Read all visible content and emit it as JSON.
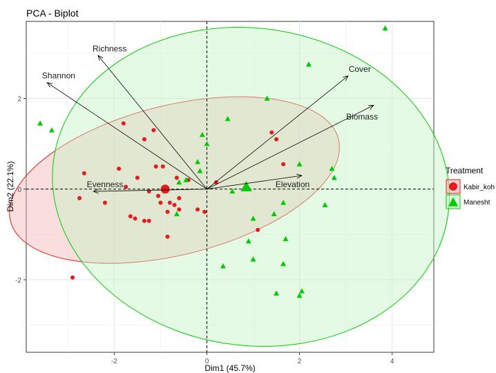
{
  "chart_data": {
    "type": "scatter",
    "title": "PCA - Biplot",
    "xlabel": "Dim1 (45.7%)",
    "ylabel": "Dim2 (22.1%)",
    "xlim": [
      -3.9,
      4.9
    ],
    "ylim": [
      -3.6,
      3.7
    ],
    "xticks": [
      -2,
      0,
      2,
      4
    ],
    "yticks": [
      -2,
      0,
      2
    ],
    "grid": true,
    "legend": {
      "title": "Treatment",
      "position": "right"
    },
    "series": [
      {
        "name": "Kabir_koh",
        "color": "#e41a1c",
        "fill": "#f4b4b4",
        "marker": "circle",
        "points": [
          [
            -1.8,
            1.45
          ],
          [
            -1.35,
            1.1
          ],
          [
            -1.15,
            1.3
          ],
          [
            -1.1,
            0.5
          ],
          [
            -0.95,
            0.5
          ],
          [
            -2.65,
            0.35
          ],
          [
            -1.9,
            0.45
          ],
          [
            -1.5,
            0.25
          ],
          [
            -1.75,
            0.05
          ],
          [
            -1.25,
            -0.05
          ],
          [
            -2.75,
            -0.2
          ],
          [
            -2.2,
            -0.3
          ],
          [
            -1.65,
            -0.6
          ],
          [
            -1.55,
            -0.65
          ],
          [
            -1.35,
            -0.7
          ],
          [
            -1.25,
            -0.7
          ],
          [
            -1.05,
            -0.15
          ],
          [
            -1.0,
            -0.3
          ],
          [
            -0.8,
            -0.3
          ],
          [
            -0.85,
            -0.5
          ],
          [
            -0.6,
            -0.2
          ],
          [
            -0.4,
            0.2
          ],
          [
            -0.65,
            0.25
          ],
          [
            -0.7,
            -0.35
          ],
          [
            -0.6,
            -0.45
          ],
          [
            -0.2,
            -0.45
          ],
          [
            -0.05,
            -0.5
          ],
          [
            -0.85,
            -1.05
          ],
          [
            0.2,
            0.15
          ],
          [
            1.4,
            1.25
          ],
          [
            1.5,
            1.1
          ],
          [
            1.65,
            0.55
          ],
          [
            1.1,
            -0.9
          ],
          [
            -2.9,
            -1.95
          ]
        ],
        "centroid": [
          -0.9,
          0.0
        ],
        "ellipse": {
          "cx": -0.7,
          "cy": 0.2,
          "rx": 3.65,
          "ry": 1.65,
          "angle_deg": 14
        }
      },
      {
        "name": "Manesht",
        "color": "#00cc00",
        "fill": "#c6f5c6",
        "marker": "triangle",
        "points": [
          [
            3.85,
            3.55
          ],
          [
            2.2,
            2.75
          ],
          [
            1.3,
            2.0
          ],
          [
            -3.6,
            1.45
          ],
          [
            -3.35,
            1.3
          ],
          [
            0.45,
            1.55
          ],
          [
            -0.1,
            1.2
          ],
          [
            0.0,
            1.0
          ],
          [
            -0.2,
            0.6
          ],
          [
            -0.15,
            0.4
          ],
          [
            -0.45,
            0.2
          ],
          [
            -0.6,
            0.15
          ],
          [
            0.55,
            -0.05
          ],
          [
            0.85,
            0.05
          ],
          [
            2.0,
            0.55
          ],
          [
            2.7,
            0.45
          ],
          [
            2.75,
            0.25
          ],
          [
            1.65,
            -0.3
          ],
          [
            2.55,
            -0.35
          ],
          [
            1.0,
            -0.65
          ],
          [
            1.45,
            -0.55
          ],
          [
            -0.65,
            -0.55
          ],
          [
            0.9,
            -1.15
          ],
          [
            1.7,
            -1.1
          ],
          [
            0.35,
            -1.7
          ],
          [
            1.0,
            -1.55
          ],
          [
            1.65,
            -1.65
          ],
          [
            1.5,
            -2.3
          ],
          [
            2.05,
            -2.25
          ],
          [
            2.0,
            -2.35
          ]
        ],
        "centroid": [
          0.85,
          0.05
        ],
        "ellipse": {
          "cx": 0.95,
          "cy": 0.05,
          "rx": 4.3,
          "ry": 3.5,
          "angle_deg": -8
        }
      }
    ],
    "vectors": [
      {
        "label": "Richness",
        "x": -2.35,
        "y": 2.95,
        "label_x": -2.1,
        "label_y": 3.1
      },
      {
        "label": "Shannon",
        "x": -3.45,
        "y": 2.35,
        "label_x": -3.2,
        "label_y": 2.5
      },
      {
        "label": "Cover",
        "x": 3.05,
        "y": 2.5,
        "label_x": 3.3,
        "label_y": 2.65
      },
      {
        "label": "Biomass",
        "x": 3.6,
        "y": 1.85,
        "label_x": 3.35,
        "label_y": 1.6
      },
      {
        "label": "Elevation",
        "x": 2.05,
        "y": 0.3,
        "label_x": 1.85,
        "label_y": 0.1
      },
      {
        "label": "Evenness",
        "x": -2.45,
        "y": -0.05,
        "label_x": -2.2,
        "label_y": 0.1
      }
    ]
  }
}
